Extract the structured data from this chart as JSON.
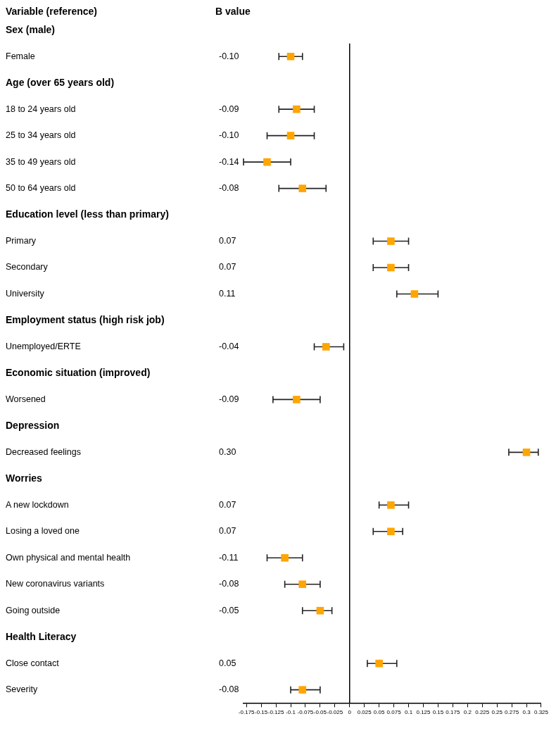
{
  "chart_data": {
    "type": "scatter",
    "orientation": "horizontal",
    "marker": "square",
    "color": "#ffa500",
    "annotations": [
      "Variable (reference)",
      "B value"
    ],
    "categories": [
      "Sex (male)",
      "Female",
      "Age (over 65 years old)",
      "18 to 24 years old",
      "25 to 34 years old",
      "35 to 49 years old",
      "50 to 64 years old",
      "Education level (less than primary)",
      "Primary",
      "Secondary",
      "University",
      "Employment status (high risk job)",
      "Unemployed/ERTE",
      "Economic situation (improved)",
      "Worsened",
      "Depression",
      "Decreased feelings",
      "Worries",
      "A new lockdown",
      "Losing a loved one",
      "Own physical and mental health",
      "New coronavirus variants",
      "Going outside",
      "Health Literacy",
      "Close contact",
      "Severity"
    ],
    "values": [
      null,
      -0.1,
      null,
      -0.09,
      -0.1,
      -0.14,
      -0.08,
      null,
      0.07,
      0.07,
      0.11,
      null,
      -0.04,
      null,
      -0.09,
      null,
      0.3,
      null,
      0.07,
      0.07,
      -0.11,
      -0.08,
      -0.05,
      null,
      0.05,
      -0.08
    ],
    "errors": [
      null,
      [
        -0.12,
        -0.08
      ],
      null,
      [
        -0.12,
        -0.06
      ],
      [
        -0.14,
        -0.06
      ],
      [
        -0.18,
        -0.1
      ],
      [
        -0.12,
        -0.04
      ],
      null,
      [
        0.04,
        0.1
      ],
      [
        0.04,
        0.1
      ],
      [
        0.08,
        0.15
      ],
      null,
      [
        -0.06,
        -0.01
      ],
      null,
      [
        -0.13,
        -0.05
      ],
      null,
      [
        0.27,
        0.32
      ],
      null,
      [
        0.05,
        0.1
      ],
      [
        0.04,
        0.09
      ],
      [
        -0.14,
        -0.08
      ],
      [
        -0.11,
        -0.05
      ],
      [
        -0.08,
        -0.03
      ],
      null,
      [
        0.03,
        0.08
      ],
      [
        -0.1,
        -0.05
      ]
    ],
    "value_labels": [
      null,
      "-0.10",
      null,
      "-0.09",
      "-0.10",
      "-0.14",
      "-0.08",
      null,
      "0.07",
      "0.07",
      "0.11",
      null,
      "-0.04",
      null,
      "-0.09",
      null,
      "0.30",
      null,
      "0.07",
      "0.07",
      "-0.11",
      "-0.08",
      "-0.05",
      null,
      "0.05",
      "-0.08"
    ],
    "xlim": [
      -0.18,
      0.325
    ],
    "xticks": [
      -0.175,
      -0.15,
      -0.125,
      -0.1,
      -0.075,
      -0.05,
      -0.025,
      0,
      0.025,
      0.05,
      0.075,
      0.1,
      0.125,
      0.15,
      0.175,
      0.2,
      0.225,
      0.25,
      0.275,
      0.3,
      0.325
    ],
    "ref_lines": [
      {
        "axis": "x",
        "value": 0,
        "color": "#000000"
      }
    ],
    "grid": false,
    "legend": false
  }
}
